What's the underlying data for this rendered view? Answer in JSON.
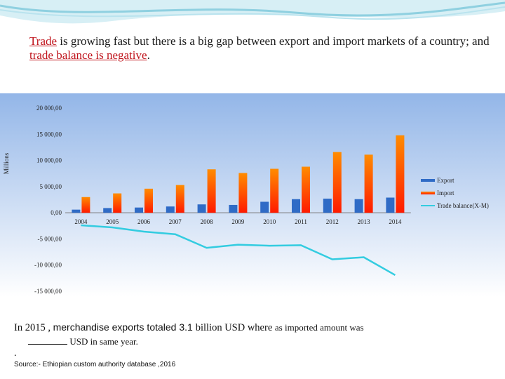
{
  "title": {
    "part1": "Trade",
    "part2": " is growing fast but there is a big gap between export and import markets of a country; and ",
    "part3": "trade balance is negative",
    "part4": "."
  },
  "chart_data": {
    "type": "bar",
    "categories": [
      "2004",
      "2005",
      "2006",
      "2007",
      "2008",
      "2009",
      "2010",
      "2011",
      "2012",
      "2013",
      "2014"
    ],
    "series": [
      {
        "name": "Export",
        "type": "bar",
        "values": [
          600,
          900,
          1000,
          1200,
          1600,
          1500,
          2100,
          2600,
          2700,
          2600,
          2900
        ]
      },
      {
        "name": "Import",
        "type": "bar",
        "values": [
          3000,
          3700,
          4600,
          5300,
          8300,
          7600,
          8400,
          8800,
          11600,
          11100,
          14800
        ]
      },
      {
        "name": "Trade balance(X-M)",
        "type": "line",
        "values": [
          -2400,
          -2800,
          -3600,
          -4100,
          -6700,
          -6100,
          -6300,
          -6200,
          -8900,
          -8500,
          -11900
        ]
      }
    ],
    "ylabel": "Millions",
    "ylim": [
      -15000,
      20000
    ],
    "ytick_values": [
      20000,
      15000,
      10000,
      5000,
      0,
      -5000,
      -10000,
      -15000
    ],
    "ytick_labels": [
      "20 000,00",
      "15 000,00",
      "10 000,00",
      "5 000,00",
      "0,00",
      "-5 000,00",
      "-10 000,00",
      "-15 000,00"
    ],
    "legend_position": "right",
    "colors": {
      "export": "#2f6bc6",
      "import_top": "#ff8c00",
      "import_bottom": "#ff1a00",
      "balance": "#33cce0",
      "plot_top": "#93b6e8",
      "plot_bottom": "#ffffff"
    }
  },
  "note": {
    "part1": "In 2015 , ",
    "part2": "merchandise exports totaled 3.1 ",
    "part3": "billion USD where ",
    "part4": "as imported amount  was",
    "part5": "USD in same year.",
    "dot": "."
  },
  "source": "Source:- Ethiopian custom authority database ,2016"
}
